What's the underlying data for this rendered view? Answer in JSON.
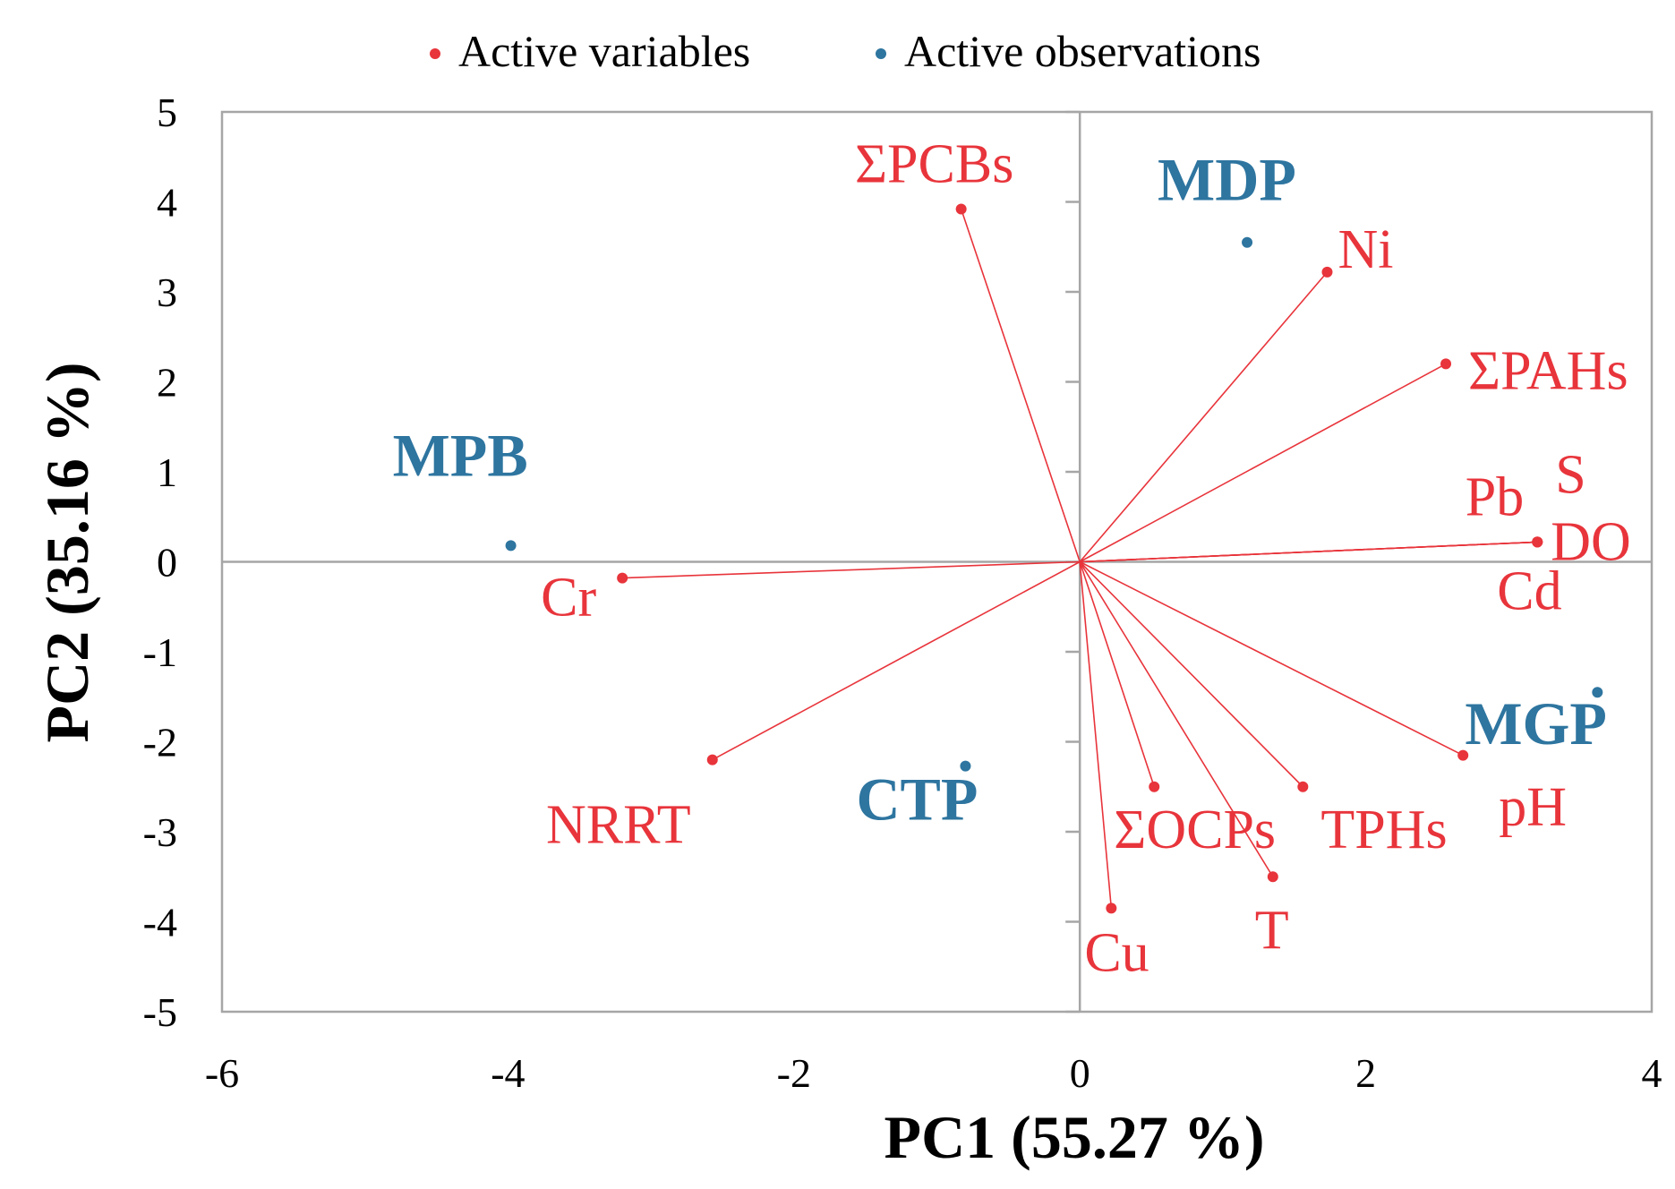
{
  "chart_data": {
    "type": "scatter",
    "subtype": "pca-biplot",
    "title": "",
    "xlabel": "PC1 (55.27 %)",
    "ylabel": "PC2 (35.16 %)",
    "xlim": [
      -6,
      4
    ],
    "ylim": [
      -5,
      5
    ],
    "xticks": [
      -6,
      -4,
      -2,
      0,
      2,
      4
    ],
    "yticks": [
      -5,
      -4,
      -3,
      -2,
      -1,
      0,
      1,
      2,
      3,
      4,
      5
    ],
    "legend": {
      "position": "top",
      "items": [
        {
          "label": "Active variables",
          "color": "#e8343b"
        },
        {
          "label": "Active observations",
          "color": "#2e75a0"
        }
      ]
    },
    "series": [
      {
        "name": "Active variables",
        "color": "#e8343b",
        "vectors_from_origin": true,
        "points": [
          {
            "label": "ΣPCBs",
            "x": -0.83,
            "y": 3.92
          },
          {
            "label": "Ni",
            "x": 1.73,
            "y": 3.22
          },
          {
            "label": "ΣPAHs",
            "x": 2.56,
            "y": 2.2
          },
          {
            "label": "Pb",
            "x": 3.2,
            "y": 0.22
          },
          {
            "label": "S",
            "x": 3.2,
            "y": 0.22
          },
          {
            "label": "DO",
            "x": 3.2,
            "y": 0.22
          },
          {
            "label": "Cd",
            "x": 3.2,
            "y": 0.22
          },
          {
            "label": "Cr",
            "x": -3.2,
            "y": -0.18
          },
          {
            "label": "NRRT",
            "x": -2.57,
            "y": -2.2
          },
          {
            "label": "pH",
            "x": 2.68,
            "y": -2.15
          },
          {
            "label": "TPHs",
            "x": 1.56,
            "y": -2.5
          },
          {
            "label": "ΣOCPs",
            "x": 0.52,
            "y": -2.5
          },
          {
            "label": "T",
            "x": 1.35,
            "y": -3.5
          },
          {
            "label": "Cu",
            "x": 0.22,
            "y": -3.85
          }
        ]
      },
      {
        "name": "Active observations",
        "color": "#2e75a0",
        "points": [
          {
            "label": "MDP",
            "x": 1.17,
            "y": 3.55
          },
          {
            "label": "MPB",
            "x": -3.98,
            "y": 0.18
          },
          {
            "label": "CTP",
            "x": -0.8,
            "y": -2.27
          },
          {
            "label": "MGP",
            "x": 3.62,
            "y": -1.45
          }
        ]
      }
    ]
  }
}
